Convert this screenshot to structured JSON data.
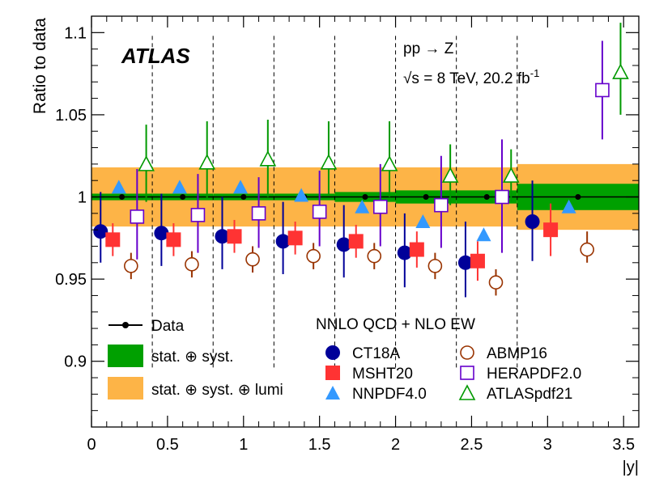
{
  "chart_data": {
    "type": "scatter",
    "experiment": "ATLAS",
    "process": "pp → Z",
    "energy_text": "√s = 8 TeV, 20.2 fb",
    "energy_sup": "-1",
    "xlabel": "|y|",
    "ylabel": "Ratio to data",
    "xlim": [
      0,
      3.6
    ],
    "ylim": [
      0.86,
      1.11
    ],
    "xticks": [
      0,
      0.5,
      1,
      1.5,
      2,
      2.5,
      3,
      3.5
    ],
    "xtick_labels": [
      "0",
      "0.5",
      "1",
      "1.5",
      "2",
      "2.5",
      "3",
      "3.5"
    ],
    "yticks": [
      0.9,
      0.95,
      1,
      1.05,
      1.1
    ],
    "ytick_labels": [
      "0.9",
      "0.95",
      "1",
      "1.05",
      "1.1"
    ],
    "bin_edges": [
      0,
      0.4,
      0.8,
      1.2,
      1.6,
      2.0,
      2.4,
      2.8,
      3.6
    ],
    "bin_centers": [
      0.2,
      0.6,
      1.0,
      1.4,
      1.8,
      2.2,
      2.6,
      3.2
    ],
    "data_values": [
      1,
      1,
      1,
      1,
      1,
      1,
      1,
      1
    ],
    "band_stat_syst": [
      0.002,
      0.002,
      0.002,
      0.002,
      0.003,
      0.004,
      0.004,
      0.008
    ],
    "band_total": [
      0.018,
      0.018,
      0.018,
      0.018,
      0.018,
      0.018,
      0.018,
      0.02
    ],
    "theory_header": "NNLO QCD + NLO EW",
    "legend_data": "Data",
    "legend_band_stat": "stat. ⊕ syst.",
    "legend_band_total": "stat. ⊕ syst. ⊕ lumi",
    "colors": {
      "stat_band": "#00A000",
      "total_band": "#FDB447",
      "CT18A": "#000099",
      "MSHT20": "#FF3333",
      "NNPDF40": "#3399FF",
      "ABMP16": "#993300",
      "HERAPDF20": "#6600CC",
      "ATLASpdf21": "#009900"
    },
    "series": [
      {
        "name": "CT18A",
        "marker": "circle-filled",
        "color_key": "CT18A",
        "offset": -0.14,
        "x": [
          0.06,
          0.46,
          0.86,
          1.26,
          1.66,
          2.06,
          2.46,
          2.9
        ],
        "values": [
          0.979,
          0.978,
          0.976,
          0.973,
          0.971,
          0.966,
          0.96,
          0.985
        ],
        "err_low": [
          0.019,
          0.02,
          0.02,
          0.02,
          0.02,
          0.021,
          0.021,
          0.024
        ],
        "err_high": [
          0.024,
          0.024,
          0.024,
          0.024,
          0.024,
          0.024,
          0.025,
          0.025
        ]
      },
      {
        "name": "MSHT20",
        "marker": "square-filled",
        "color_key": "MSHT20",
        "offset": -0.1,
        "x": [
          0.14,
          0.54,
          0.94,
          1.34,
          1.74,
          2.14,
          2.54,
          3.02
        ],
        "values": [
          0.974,
          0.974,
          0.976,
          0.975,
          0.973,
          0.968,
          0.961,
          0.98
        ],
        "err_low": [
          0.01,
          0.01,
          0.01,
          0.01,
          0.01,
          0.011,
          0.012,
          0.016
        ],
        "err_high": [
          0.01,
          0.01,
          0.01,
          0.01,
          0.01,
          0.011,
          0.012,
          0.016
        ]
      },
      {
        "name": "NNPDF4.0",
        "marker": "triangle-filled",
        "color_key": "NNPDF40",
        "offset": -0.03,
        "x": [
          0.18,
          0.58,
          0.98,
          1.38,
          1.78,
          2.18,
          2.58,
          3.14
        ],
        "values": [
          1.006,
          1.006,
          1.006,
          1.001,
          0.994,
          0.985,
          0.977,
          0.994
        ],
        "err_low": [
          0.0,
          0.0,
          0.0,
          0.0,
          0.0,
          0.0,
          0.0,
          0.0
        ],
        "err_high": [
          0.0,
          0.0,
          0.0,
          0.0,
          0.0,
          0.0,
          0.0,
          0.0
        ]
      },
      {
        "name": "ABMP16",
        "marker": "circle-open",
        "color_key": "ABMP16",
        "offset": 0.06,
        "x": [
          0.26,
          0.66,
          1.06,
          1.46,
          1.86,
          2.26,
          2.66,
          3.26
        ],
        "values": [
          0.958,
          0.959,
          0.962,
          0.964,
          0.964,
          0.958,
          0.948,
          0.968
        ],
        "err_low": [
          0.008,
          0.008,
          0.008,
          0.008,
          0.008,
          0.008,
          0.008,
          0.008
        ],
        "err_high": [
          0.008,
          0.008,
          0.008,
          0.008,
          0.008,
          0.008,
          0.008,
          0.011
        ]
      },
      {
        "name": "HERAPDF2.0",
        "marker": "square-open",
        "color_key": "HERAPDF20",
        "offset": 0.14,
        "x": [
          0.3,
          0.7,
          1.1,
          1.5,
          1.9,
          2.3,
          2.7,
          3.36
        ],
        "values": [
          0.988,
          0.989,
          0.99,
          0.991,
          0.994,
          0.995,
          1.0,
          1.065
        ],
        "err_low": [
          0.026,
          0.023,
          0.021,
          0.021,
          0.024,
          0.026,
          0.034,
          0.03
        ],
        "err_high": [
          0.029,
          0.025,
          0.022,
          0.025,
          0.026,
          0.03,
          0.035,
          0.03
        ]
      },
      {
        "name": "ATLASpdf21",
        "marker": "triangle-open",
        "color_key": "ATLASpdf21",
        "offset": 0.21,
        "x": [
          0.36,
          0.76,
          1.16,
          1.56,
          1.96,
          2.36,
          2.76,
          3.48
        ],
        "values": [
          1.02,
          1.021,
          1.023,
          1.021,
          1.02,
          1.013,
          1.013,
          1.076
        ],
        "err_low": [
          0.023,
          0.022,
          0.023,
          0.02,
          0.02,
          0.018,
          0.016,
          0.026
        ],
        "err_high": [
          0.024,
          0.025,
          0.024,
          0.025,
          0.026,
          0.019,
          0.016,
          0.03
        ]
      }
    ]
  }
}
